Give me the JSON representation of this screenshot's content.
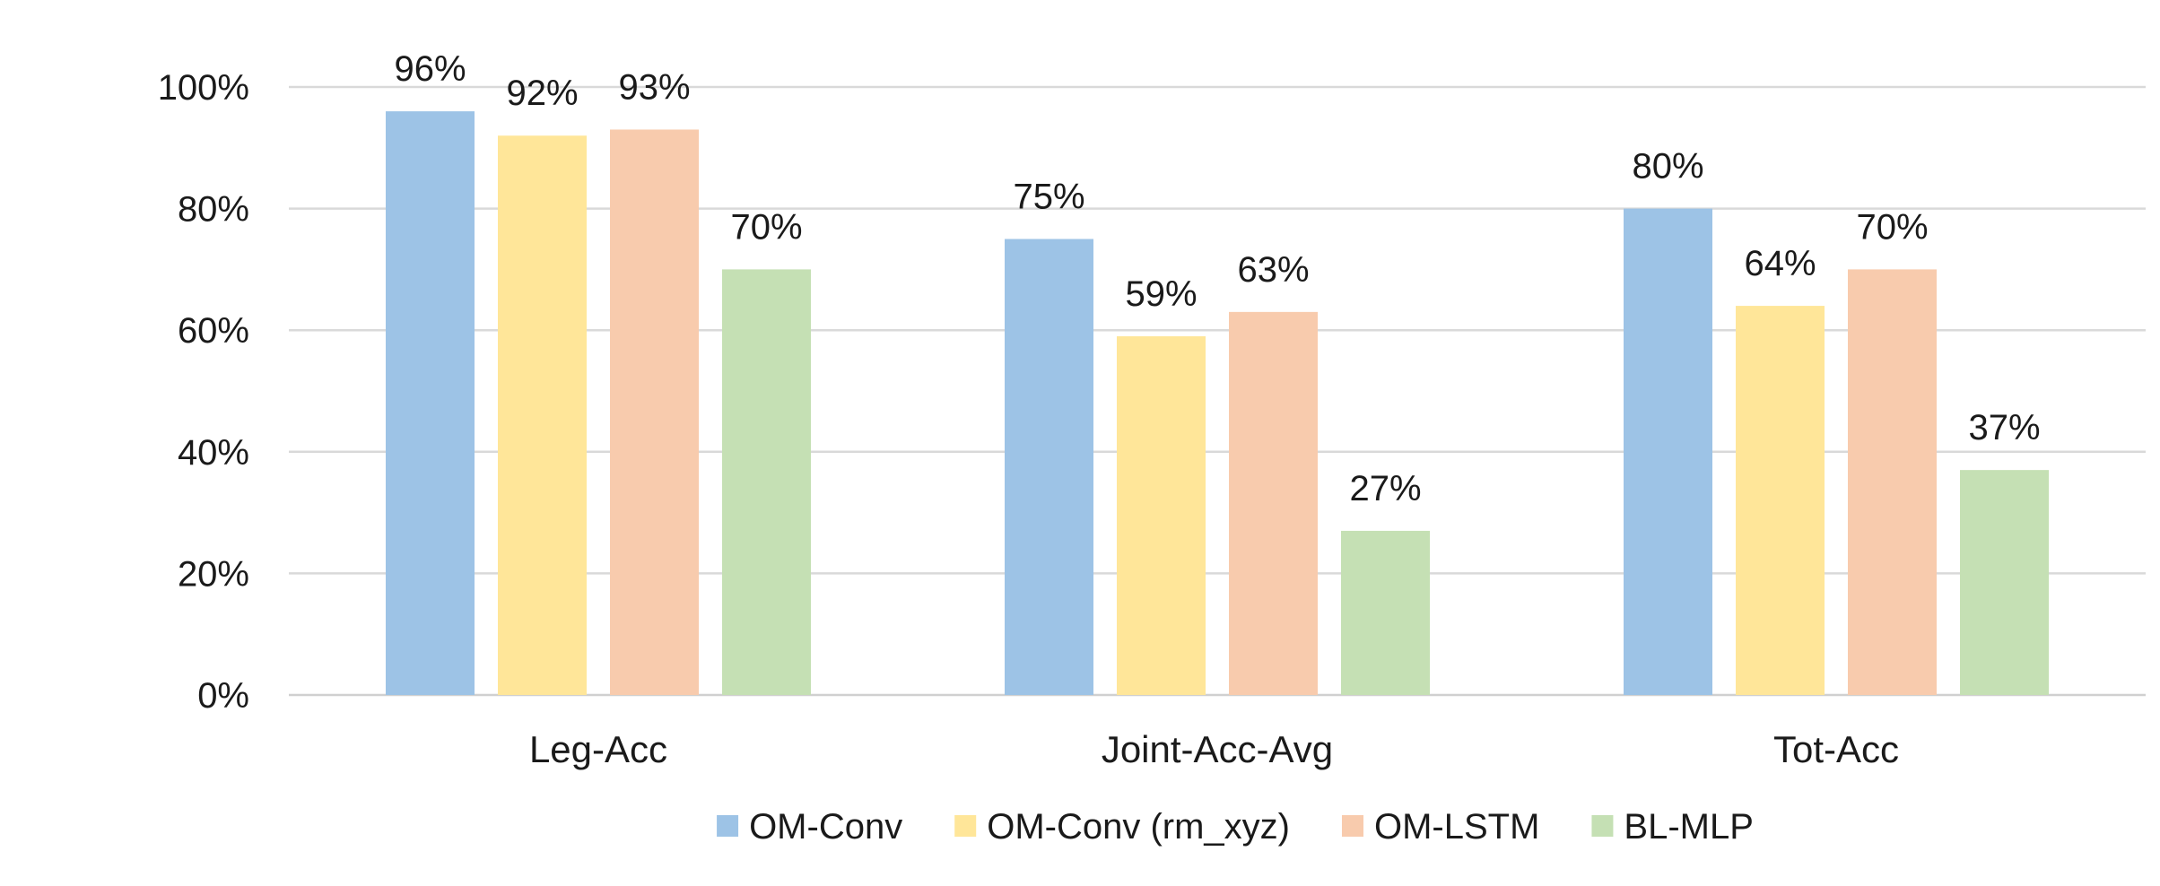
{
  "chart_data": {
    "type": "bar",
    "title": "",
    "xlabel": "",
    "ylabel": "",
    "categories": [
      "Leg-Acc",
      "Joint-Acc-Avg",
      "Tot-Acc"
    ],
    "series": [
      {
        "name": "OM-Conv",
        "color": "#9DC3E6",
        "values": [
          96,
          75,
          80
        ],
        "labels": [
          "96%",
          "75%",
          "80%"
        ]
      },
      {
        "name": "OM-Conv (rm_xyz)",
        "color": "#FFE699",
        "values": [
          92,
          59,
          64
        ],
        "labels": [
          "92%",
          "59%",
          "64%"
        ]
      },
      {
        "name": "OM-LSTM",
        "color": "#F8CBAD",
        "values": [
          93,
          63,
          70
        ],
        "labels": [
          "93%",
          "63%",
          "70%"
        ]
      },
      {
        "name": "BL-MLP",
        "color": "#C5E0B4",
        "values": [
          70,
          27,
          37
        ],
        "labels": [
          "70%",
          "27%",
          "37%"
        ]
      }
    ],
    "yticks": [
      0,
      20,
      40,
      60,
      80,
      100
    ],
    "ytick_labels": [
      "0%",
      "20%",
      "40%",
      "60%",
      "80%",
      "100%"
    ],
    "ylim": [
      0,
      100
    ],
    "grid": true,
    "legend": "bottom"
  }
}
